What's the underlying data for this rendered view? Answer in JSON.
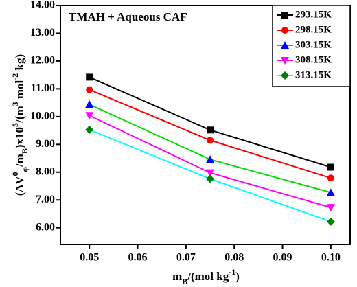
{
  "chart_data": {
    "type": "line",
    "annotation": "TMAH + Aqueous CAF",
    "x_label_parts": [
      "m",
      "B",
      "/(mol kg",
      "-1",
      ")"
    ],
    "y_label_parts": [
      "(ΔV",
      "0",
      "φ",
      "/m",
      "B",
      ")x10",
      "5",
      "/(m",
      "3",
      " mol",
      "-2",
      " kg)"
    ],
    "x": [
      0.05,
      0.075,
      0.1
    ],
    "series": [
      {
        "name": "293.15K",
        "color": "#000000",
        "marker_color": "#000000",
        "marker": "square",
        "values": [
          11.42,
          9.52,
          8.18
        ]
      },
      {
        "name": "298.15K",
        "color": "#ff0000",
        "marker_color": "#ff0000",
        "marker": "circle",
        "values": [
          10.97,
          9.15,
          7.79
        ]
      },
      {
        "name": "303.15K",
        "color": "#00dd00",
        "marker_color": "#0000ff",
        "marker": "triangle-up",
        "values": [
          10.44,
          8.46,
          7.27
        ]
      },
      {
        "name": "308.15K",
        "color": "#ff00ff",
        "marker_color": "#ff00ff",
        "marker": "triangle-down",
        "values": [
          10.04,
          7.98,
          6.73
        ]
      },
      {
        "name": "313.15K",
        "color": "#00ffff",
        "marker_color": "#008000",
        "marker": "diamond",
        "values": [
          9.53,
          7.76,
          6.22
        ]
      }
    ],
    "xlim": [
      0.044,
      0.104
    ],
    "ylim": [
      5.4,
      14.0
    ],
    "xticks": [
      0.05,
      0.06,
      0.07,
      0.08,
      0.09,
      {
        "value": 0.1,
        "label": "0.10"
      }
    ],
    "yticks": [
      {
        "value": 6,
        "label": "6.00"
      },
      {
        "value": 7,
        "label": "7.00"
      },
      {
        "value": 8,
        "label": "8.00"
      },
      {
        "value": 9,
        "label": "9.00"
      },
      {
        "value": 10,
        "label": "10.00"
      },
      {
        "value": 11,
        "label": "11.00"
      },
      {
        "value": 12,
        "label": "12.00"
      },
      {
        "value": 13,
        "label": "13.00"
      },
      {
        "value": 14,
        "label": "14.00"
      }
    ],
    "legend": "upper right",
    "grid": false
  }
}
